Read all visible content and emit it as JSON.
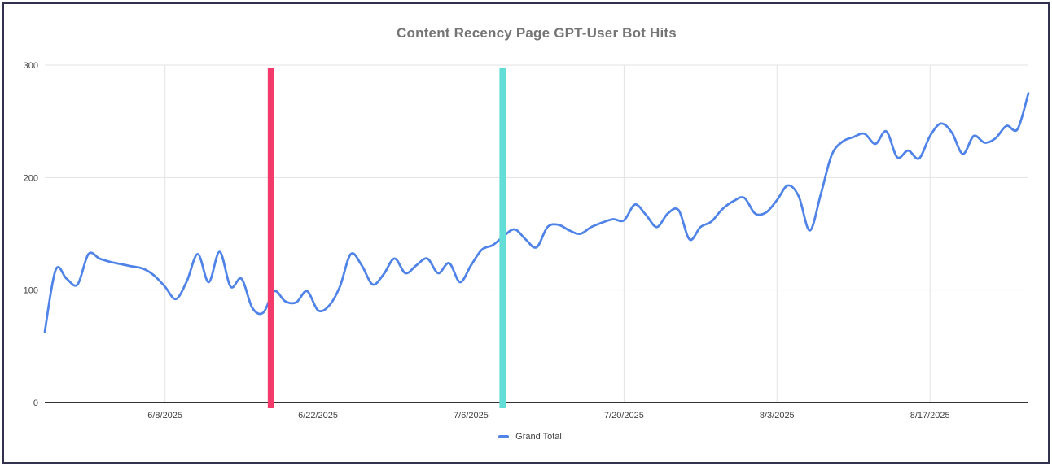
{
  "window": {
    "background_color": "#ffffff",
    "border_color": "#32324e"
  },
  "chart": {
    "title": "Content Recency Page GPT-User Bot Hits",
    "title_color": "#757575",
    "legend": {
      "label": "Grand Total",
      "swatch_color": "#4f83e8"
    }
  },
  "chart_data": {
    "type": "line",
    "title": "Content Recency Page GPT-User Bot Hits",
    "xlabel": "",
    "ylabel": "",
    "ylim": [
      0,
      300
    ],
    "y_ticks": [
      0,
      100,
      200,
      300
    ],
    "x_tick_labels": [
      "6/8/2025",
      "6/22/2025",
      "7/6/2025",
      "7/20/2025",
      "8/3/2025",
      "8/17/2025"
    ],
    "x_tick_indices": [
      11,
      25,
      39,
      53,
      67,
      81
    ],
    "grid": true,
    "legend_position": "bottom",
    "series": [
      {
        "name": "Grand Total",
        "color": "#4f83e8",
        "values": [
          63,
          118,
          110,
          105,
          132,
          128,
          125,
          123,
          121,
          119,
          113,
          103,
          92,
          108,
          132,
          107,
          134,
          103,
          110,
          84,
          80,
          99,
          90,
          89,
          99,
          82,
          86,
          103,
          132,
          122,
          105,
          114,
          128,
          115,
          122,
          128,
          115,
          124,
          107,
          122,
          136,
          140,
          148,
          154,
          145,
          138,
          156,
          158,
          153,
          150,
          156,
          160,
          163,
          162,
          176,
          167,
          156,
          168,
          171,
          145,
          156,
          161,
          172,
          179,
          182,
          168,
          169,
          180,
          193,
          183,
          153,
          185,
          220,
          232,
          236,
          239,
          230,
          241,
          218,
          224,
          217,
          237,
          248,
          240,
          221,
          237,
          231,
          235,
          246,
          243,
          275
        ]
      }
    ],
    "annotations": [
      {
        "type": "vline",
        "x_index": 20.7,
        "color": "#f23a6b",
        "width": 8
      },
      {
        "type": "vline",
        "x_index": 41.9,
        "color": "#63ded6",
        "width": 8
      }
    ],
    "style": {
      "gridline_color": "#e3e3e3",
      "axis_color": "#333333",
      "tick_label_color": "#424242",
      "line_width": 2.75
    }
  }
}
